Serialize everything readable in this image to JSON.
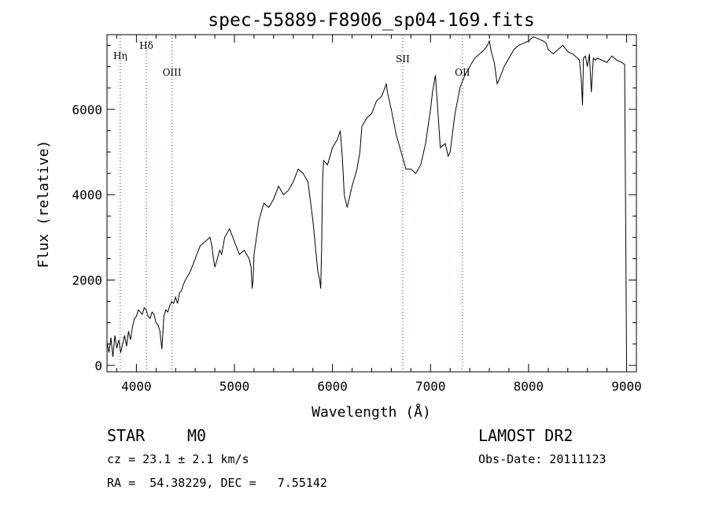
{
  "chart_data": {
    "type": "line",
    "title": "spec-55889-F8906_sp04-169.fits",
    "xlabel": "Wavelength (Å)",
    "ylabel": "Flux (relative)",
    "xlim": [
      3700,
      9100
    ],
    "ylim": [
      -150,
      7750
    ],
    "xticks": [
      4000,
      5000,
      6000,
      7000,
      8000,
      9000
    ],
    "xtick_labels": [
      "4000",
      "5000",
      "6000",
      "7000",
      "8000",
      "9000"
    ],
    "yticks": [
      0,
      2000,
      4000,
      6000
    ],
    "ytick_labels": [
      "0",
      "2000",
      "4000",
      "6000"
    ],
    "grid": false,
    "line_color": "#000000",
    "marker_color": "#c00000",
    "line_markers": [
      {
        "label": "Hη",
        "wavelength": 3835
      },
      {
        "label": "Hδ",
        "wavelength": 4101
      },
      {
        "label": "OIII",
        "wavelength": 4363
      },
      {
        "label": "SII",
        "wavelength": 6717
      },
      {
        "label": "OII",
        "wavelength": 7325
      }
    ],
    "series": [
      {
        "x": [
          3700,
          3720,
          3740,
          3760,
          3780,
          3800,
          3820,
          3840,
          3860,
          3880,
          3900,
          3920,
          3940,
          3960,
          3980,
          4000,
          4020,
          4040,
          4060,
          4080,
          4100,
          4120,
          4140,
          4160,
          4180,
          4200,
          4220,
          4240,
          4260,
          4280,
          4300,
          4320,
          4340,
          4360,
          4380,
          4400,
          4420,
          4440,
          4460,
          4480,
          4500,
          4550,
          4600,
          4650,
          4700,
          4750,
          4760,
          4770,
          4780,
          4800,
          4850,
          4870,
          4900,
          4950,
          5000,
          5050,
          5100,
          5150,
          5170,
          5180,
          5190,
          5200,
          5250,
          5300,
          5350,
          5400,
          5450,
          5500,
          5550,
          5600,
          5650,
          5700,
          5750,
          5800,
          5850,
          5870,
          5880,
          5890,
          5895,
          5900,
          5910,
          5950,
          6000,
          6050,
          6080,
          6100,
          6120,
          6150,
          6200,
          6250,
          6280,
          6300,
          6350,
          6400,
          6450,
          6500,
          6550,
          6560,
          6580,
          6600,
          6650,
          6700,
          6750,
          6800,
          6850,
          6900,
          6950,
          7000,
          7020,
          7050,
          7080,
          7100,
          7150,
          7180,
          7200,
          7250,
          7300,
          7350,
          7400,
          7450,
          7500,
          7550,
          7580,
          7600,
          7620,
          7650,
          7680,
          7700,
          7750,
          7800,
          7850,
          7900,
          7950,
          8000,
          8050,
          8100,
          8150,
          8180,
          8200,
          8250,
          8300,
          8350,
          8400,
          8450,
          8500,
          8520,
          8540,
          8550,
          8560,
          8580,
          8600,
          8620,
          8640,
          8660,
          8680,
          8700,
          8750,
          8800,
          8850,
          8900,
          8950,
          8980,
          8990,
          9000
        ],
        "y": [
          550,
          300,
          650,
          200,
          700,
          400,
          600,
          300,
          500,
          700,
          450,
          800,
          600,
          900,
          1100,
          1150,
          1300,
          1250,
          1200,
          1350,
          1300,
          1150,
          1100,
          1250,
          1200,
          1000,
          950,
          800,
          380,
          1150,
          1300,
          1250,
          1400,
          1500,
          1450,
          1600,
          1450,
          1700,
          1750,
          1900,
          2000,
          2200,
          2500,
          2800,
          2900,
          3000,
          2900,
          2800,
          2600,
          2300,
          2700,
          2600,
          3000,
          3200,
          2900,
          2600,
          2700,
          2500,
          2300,
          1800,
          2000,
          2600,
          3400,
          3800,
          3700,
          3900,
          4200,
          4000,
          4100,
          4300,
          4600,
          4500,
          4300,
          3400,
          2200,
          2000,
          1800,
          2800,
          3800,
          4400,
          4800,
          4700,
          5100,
          5300,
          5500,
          4900,
          4000,
          3700,
          4200,
          4600,
          5000,
          5600,
          5800,
          5900,
          6200,
          6300,
          6600,
          6400,
          6200,
          6000,
          5400,
          5000,
          4600,
          4600,
          4500,
          4700,
          5200,
          6000,
          6400,
          6800,
          5800,
          5100,
          5200,
          4900,
          5000,
          5900,
          6500,
          6800,
          7000,
          7200,
          7300,
          7400,
          7500,
          7600,
          7350,
          7100,
          6600,
          6700,
          7000,
          7200,
          7400,
          7500,
          7550,
          7600,
          7700,
          7650,
          7600,
          7550,
          7400,
          7300,
          7400,
          7500,
          7350,
          7300,
          7200,
          7150,
          6600,
          6100,
          7200,
          7250,
          7000,
          7300,
          6400,
          7200,
          7150,
          7200,
          7150,
          7100,
          7250,
          7150,
          7100,
          7050,
          3500,
          0
        ]
      }
    ]
  },
  "info": {
    "object_class": "STAR",
    "subclass": "M0",
    "survey": "LAMOST DR2",
    "cz_line": "cz = 23.1 ± 2.1 km/s",
    "obs_date_line": "Obs-Date: 20111123",
    "coords_line": "RA =  54.38229, DEC =   7.55142"
  }
}
